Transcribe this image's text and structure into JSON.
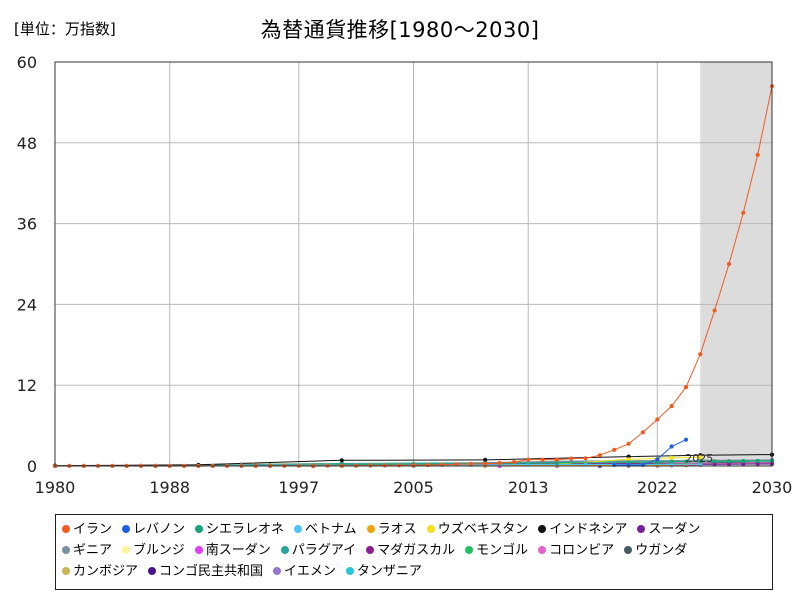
{
  "unit_label": "[単位：万指数]",
  "chart_data": {
    "type": "line",
    "title": "為替通貨推移[1980〜2030]",
    "xlim": [
      1980,
      2030
    ],
    "ylim": [
      0,
      60
    ],
    "x_ticks": [
      1980,
      1988,
      1997,
      2005,
      2013,
      2022,
      2030
    ],
    "y_ticks": [
      0,
      12,
      24,
      36,
      48,
      60
    ],
    "forecast_start": 2025,
    "forecast_label": "2025",
    "grid": true,
    "legend_position": "bottom",
    "series": [
      {
        "name": "イラン",
        "color": "#f05a1e",
        "x": [
          1980,
          1981,
          1982,
          1983,
          1984,
          1985,
          1986,
          1987,
          1988,
          1989,
          1990,
          1991,
          1992,
          1993,
          1994,
          1995,
          1996,
          1997,
          1998,
          1999,
          2000,
          2001,
          2002,
          2003,
          2004,
          2005,
          2006,
          2007,
          2008,
          2009,
          2010,
          2011,
          2012,
          2013,
          2014,
          2015,
          2016,
          2017,
          2018,
          2019,
          2020,
          2021,
          2022,
          2023,
          2024,
          2025,
          2026,
          2027,
          2028,
          2029,
          2030
        ],
        "y": [
          0.01,
          0.01,
          0.01,
          0.01,
          0.01,
          0.01,
          0.01,
          0.01,
          0.01,
          0.01,
          0.01,
          0.01,
          0.02,
          0.02,
          0.02,
          0.02,
          0.03,
          0.03,
          0.03,
          0.04,
          0.05,
          0.06,
          0.08,
          0.09,
          0.1,
          0.12,
          0.15,
          0.2,
          0.25,
          0.3,
          0.35,
          0.45,
          0.6,
          0.95,
          0.95,
          0.95,
          1.1,
          1.15,
          1.6,
          2.4,
          3.3,
          5.0,
          6.9,
          8.9,
          11.7,
          16.6,
          23.1,
          30.0,
          37.6,
          46.2,
          56.4
        ]
      },
      {
        "name": "レバノン",
        "color": "#1f5fe0",
        "x": [
          2019,
          2020,
          2021,
          2022,
          2023,
          2024
        ],
        "y": [
          0.15,
          0.15,
          0.15,
          1.0,
          2.9,
          3.9
        ]
      },
      {
        "name": "シエラレオネ",
        "color": "#1aa37a",
        "x": [
          1980,
          1985,
          1990,
          1995,
          2000,
          2005,
          2010,
          2015,
          2020,
          2022,
          2023,
          2024,
          2025,
          2026,
          2027,
          2028,
          2029,
          2030
        ],
        "y": [
          0,
          0,
          0.01,
          0.06,
          0.18,
          0.28,
          0.38,
          0.45,
          0.52,
          0.58,
          0.62,
          0.66,
          0.68,
          0.7,
          0.72,
          0.74,
          0.76,
          0.78
        ]
      },
      {
        "name": "ベトナム",
        "color": "#4fc3f7",
        "x": [
          1991,
          1993,
          1995,
          1997,
          1999,
          2001,
          2003,
          2005,
          2007,
          2009,
          2011,
          2013,
          2015,
          2017,
          2019,
          2021,
          2023,
          2025
        ],
        "y": [
          0.05,
          0.1,
          0.1,
          0.12,
          0.13,
          0.14,
          0.15,
          0.15,
          0.16,
          0.17,
          0.2,
          0.21,
          0.22,
          0.22,
          0.23,
          0.23,
          0.24,
          0.25
        ]
      },
      {
        "name": "ラオス",
        "color": "#f2a20c",
        "x": [
          2000,
          2005,
          2010,
          2015,
          2020,
          2022,
          2023,
          2024,
          2025
        ],
        "y": [
          0.08,
          0.1,
          0.08,
          0.08,
          0.09,
          0.14,
          0.17,
          0.21,
          0.22
        ]
      },
      {
        "name": "ウズベキスタン",
        "color": "#f4e01a",
        "x": [
          2000,
          2005,
          2010,
          2015,
          2020,
          2023,
          2025
        ],
        "y": [
          0.02,
          0.1,
          0.15,
          0.25,
          1.0,
          1.2,
          1.3
        ]
      },
      {
        "name": "インドネシア",
        "color": "#111111",
        "x": [
          1980,
          1990,
          2000,
          2010,
          2020,
          2025,
          2030
        ],
        "y": [
          0.06,
          0.18,
          0.85,
          0.9,
          1.4,
          1.6,
          1.7
        ]
      },
      {
        "name": "スーダン",
        "color": "#7b1fa2",
        "x": [
          2018,
          2020,
          2022,
          2023,
          2024,
          2025,
          2026,
          2027,
          2028,
          2029,
          2030
        ],
        "y": [
          0.02,
          0.05,
          0.1,
          0.15,
          0.2,
          0.25,
          0.27,
          0.28,
          0.3,
          0.32,
          0.34
        ]
      },
      {
        "name": "ギニア",
        "color": "#78909c",
        "x": [
          1986,
          1995,
          2005,
          2015,
          2025,
          2030
        ],
        "y": [
          0.03,
          0.1,
          0.25,
          0.73,
          0.86,
          0.9
        ]
      },
      {
        "name": "ブルンジ",
        "color": "#fff59d",
        "x": [
          1980,
          1990,
          2000,
          2010,
          2020,
          2025,
          2030
        ],
        "y": [
          0.01,
          0.02,
          0.07,
          0.12,
          0.19,
          0.29,
          0.35
        ]
      },
      {
        "name": "南スーダン",
        "color": "#e040fb",
        "x": [
          2011,
          2015,
          2020,
          2022,
          2023,
          2024,
          2025
        ],
        "y": [
          0.0,
          0.0,
          0.04,
          0.06,
          0.1,
          0.14,
          0.18
        ]
      },
      {
        "name": "パラグアイ",
        "color": "#26a69a",
        "x": [
          1980,
          1990,
          2000,
          2010,
          2020,
          2025,
          2030
        ],
        "y": [
          0.01,
          0.12,
          0.37,
          0.48,
          0.69,
          0.73,
          0.76
        ]
      },
      {
        "name": "マダガスカル",
        "color": "#8e1e8e",
        "x": [
          1980,
          1990,
          2000,
          2010,
          2020,
          2025,
          2030
        ],
        "y": [
          0.0,
          0.03,
          0.13,
          0.2,
          0.38,
          0.45,
          0.48
        ]
      },
      {
        "name": "モンゴル",
        "color": "#20c060",
        "x": [
          1993,
          2000,
          2010,
          2020,
          2025,
          2026,
          2027,
          2028,
          2029,
          2030
        ],
        "y": [
          0.04,
          0.11,
          0.14,
          0.28,
          0.35,
          0.55,
          0.6,
          0.65,
          0.7,
          0.72
        ]
      },
      {
        "name": "コロンビア",
        "color": "#e660c8",
        "x": [
          1980,
          1990,
          2000,
          2010,
          2020,
          2025,
          2030
        ],
        "y": [
          0.0,
          0.05,
          0.21,
          0.19,
          0.37,
          0.42,
          0.45
        ]
      },
      {
        "name": "ウガンダ",
        "color": "#455a64",
        "x": [
          1987,
          1995,
          2005,
          2015,
          2025,
          2030
        ],
        "y": [
          0.01,
          0.1,
          0.18,
          0.32,
          0.38,
          0.4
        ]
      },
      {
        "name": "カンボジア",
        "color": "#c9b458",
        "x": [
          1993,
          2000,
          2010,
          2020,
          2025,
          2030
        ],
        "y": [
          0.25,
          0.38,
          0.42,
          0.41,
          0.41,
          0.41
        ]
      },
      {
        "name": "コンゴ民主共和国",
        "color": "#4a148c",
        "x": [
          1998,
          2005,
          2015,
          2020,
          2025,
          2030
        ],
        "y": [
          0.0,
          0.04,
          0.09,
          0.2,
          0.28,
          0.3
        ]
      },
      {
        "name": "イエメン",
        "color": "#9575cd",
        "x": [
          1990,
          2000,
          2010,
          2015,
          2020,
          2025
        ],
        "y": [
          0.01,
          0.02,
          0.02,
          0.02,
          0.07,
          0.16
        ]
      },
      {
        "name": "タンザニア",
        "color": "#26c6da",
        "x": [
          1980,
          1990,
          2000,
          2010,
          2020,
          2025,
          2030
        ],
        "y": [
          0.0,
          0.02,
          0.08,
          0.15,
          0.23,
          0.26,
          0.28
        ]
      }
    ]
  }
}
